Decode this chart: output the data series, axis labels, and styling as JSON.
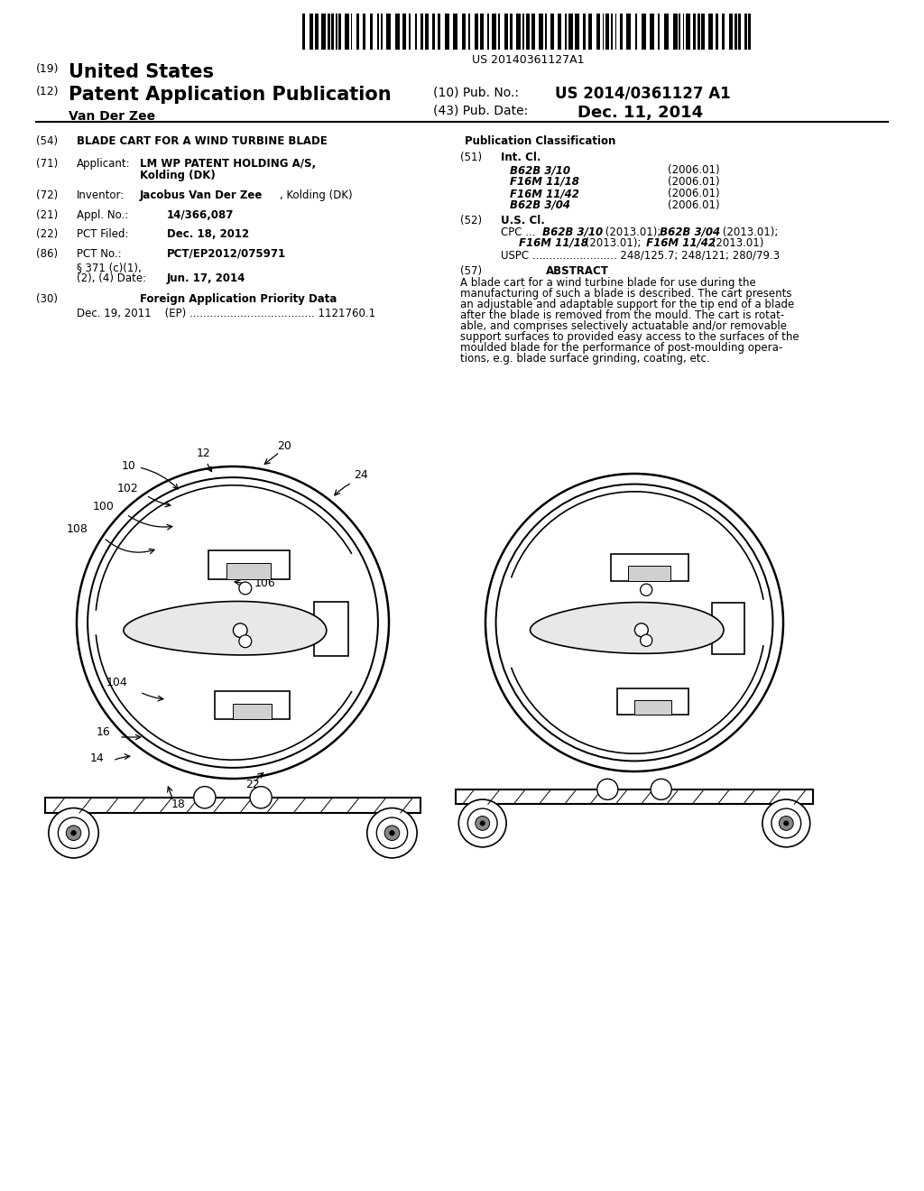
{
  "background_color": "#ffffff",
  "barcode_text": "US 20140361127A1",
  "int_cl_entries": [
    [
      "B62B 3/10",
      "(2006.01)"
    ],
    [
      "F16M 11/18",
      "(2006.01)"
    ],
    [
      "F16M 11/42",
      "(2006.01)"
    ],
    [
      "B62B 3/04",
      "(2006.01)"
    ]
  ],
  "abstract_text": "A blade cart for a wind turbine blade for use during the manufacturing of such a blade is described. The cart presents an adjustable and adaptable support for the tip end of a blade after the blade is removed from the mould. The cart is rotat-able, and comprises selectively actuatable and/or removable support surfaces to provided easy access to the surfaces of the moulded blade for the performance of post-moulding operations, e.g. blade surface grinding, coating, etc."
}
